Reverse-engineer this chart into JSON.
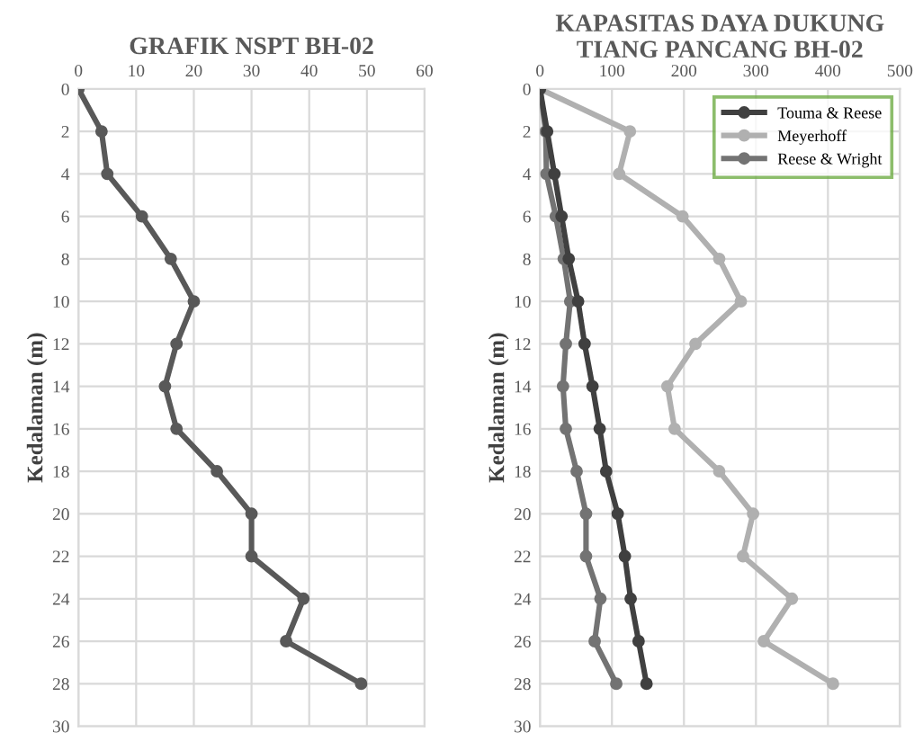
{
  "chart_data": [
    {
      "type": "line",
      "title": "GRAFIK NSPT BH-02",
      "ylabel": "Kedalaman (m)",
      "xlim": [
        0,
        60
      ],
      "xticks": [
        0,
        10,
        20,
        30,
        40,
        50,
        60
      ],
      "ylim": [
        30,
        0
      ],
      "yticks": [
        0,
        2,
        4,
        6,
        8,
        10,
        12,
        14,
        16,
        18,
        20,
        22,
        24,
        26,
        28,
        30
      ],
      "grid": true,
      "marker": "circle",
      "line_style": "solid",
      "series": [
        {
          "color": "#595959",
          "x": [
            0,
            4,
            5,
            11,
            16,
            20,
            17,
            15,
            17,
            24,
            30,
            30,
            39,
            36,
            49
          ],
          "values": [
            0,
            2,
            4,
            6,
            8,
            10,
            12,
            14,
            16,
            18,
            20,
            22,
            24,
            26,
            28
          ]
        }
      ]
    },
    {
      "type": "line",
      "title": "KAPASITAS DAYA DUKUNG TIANG PANCANG BH-02",
      "ylabel": "Kedalaman (m)",
      "xlim": [
        0,
        500
      ],
      "xticks": [
        0,
        100,
        200,
        300,
        400,
        500
      ],
      "ylim": [
        30,
        0
      ],
      "yticks": [
        0,
        2,
        4,
        6,
        8,
        10,
        12,
        14,
        16,
        18,
        20,
        22,
        24,
        26,
        28,
        30
      ],
      "grid": true,
      "marker": "circle",
      "line_style": "solid",
      "legend": "top right",
      "series": [
        {
          "name": "Touma & Reese",
          "color": "#404040",
          "x": [
            0,
            10,
            20,
            30,
            40,
            53,
            62,
            73,
            83,
            92,
            108,
            118,
            126,
            137,
            148
          ],
          "values": [
            0,
            2,
            4,
            6,
            8,
            10,
            12,
            14,
            16,
            18,
            20,
            22,
            24,
            26,
            28
          ]
        },
        {
          "name": "Meyerhoff",
          "color": "#b0b0b0",
          "x": [
            0,
            125,
            110,
            198,
            249,
            279,
            216,
            177,
            187,
            249,
            296,
            282,
            350,
            311,
            407
          ],
          "values": [
            0,
            2,
            4,
            6,
            8,
            10,
            12,
            14,
            16,
            18,
            20,
            22,
            24,
            26,
            28
          ]
        },
        {
          "name": "Reese & Wright",
          "color": "#737373",
          "x": [
            0,
            8,
            9,
            22,
            33,
            42,
            36,
            32,
            36,
            51,
            64,
            64,
            84,
            76,
            106
          ],
          "values": [
            0,
            2,
            4,
            6,
            8,
            10,
            12,
            14,
            16,
            18,
            20,
            22,
            24,
            26,
            28
          ]
        }
      ]
    }
  ]
}
